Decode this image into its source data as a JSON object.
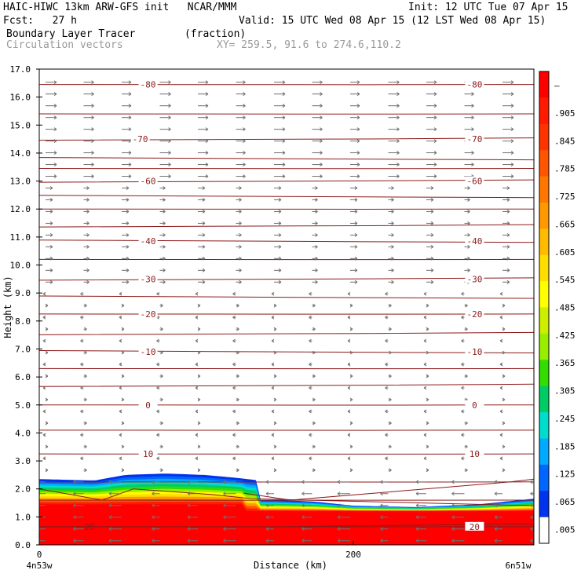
{
  "header": {
    "model_line": "HAIC-HIWC 13km ARW-GFS init   NCAR/MMM",
    "init_line": "Init: 12 UTC Tue 07 Apr 15",
    "fcst_line": "Fcst:   27 h",
    "valid_line": "Valid: 15 UTC Wed 08 Apr 15 (12 LST Wed 08 Apr 15)",
    "field_line": "Boundary Layer Tracer        (fraction)",
    "vector_line": "Circulation vectors",
    "xy_line": "XY= 259.5, 91.6 to 274.6,110.2"
  },
  "chart_data": {
    "type": "heatmap",
    "title": "Boundary Layer Tracer",
    "units": "(fraction)",
    "ylabel": "Height (km)",
    "xlabel": "Distance (km)",
    "ylim": [
      0,
      17
    ],
    "xlim": [
      0,
      315
    ],
    "yticks": [
      "0.0",
      "1.0",
      "2.0",
      "3.0",
      "4.0",
      "5.0",
      "6.0",
      "7.0",
      "8.0",
      "9.0",
      "10.0",
      "11.0",
      "12.0",
      "13.0",
      "14.0",
      "15.0",
      "16.0",
      "17.0"
    ],
    "xticks": [
      {
        "value": 0,
        "label": "0"
      },
      {
        "value": 200,
        "label": "200"
      }
    ],
    "x_endpoints": {
      "left": "4n53w",
      "right": "6n51w"
    },
    "colorbar": {
      "labels": [
        ".005",
        ".065",
        ".125",
        ".185",
        ".245",
        ".305",
        ".365",
        ".425",
        ".485",
        ".545",
        ".605",
        ".665",
        ".725",
        ".785",
        ".845",
        ".905",
        "–"
      ],
      "colors": [
        "#ffffff",
        "#0033ee",
        "#0066ff",
        "#00aaff",
        "#00ddcc",
        "#00cc66",
        "#33dd00",
        "#99ee00",
        "#ccee00",
        "#ffff00",
        "#ffdd00",
        "#ffbb00",
        "#ff9900",
        "#ff7700",
        "#ff5500",
        "#ff3300",
        "#ff1a00",
        "#ff0000"
      ]
    },
    "tracer_top_km": [
      {
        "x": 0,
        "top": 2.35
      },
      {
        "x": 40,
        "top": 2.3
      },
      {
        "x": 50,
        "top": 2.5
      },
      {
        "x": 75,
        "top": 2.55
      },
      {
        "x": 110,
        "top": 2.45
      },
      {
        "x": 140,
        "top": 2.3
      },
      {
        "x": 120,
        "top": 1.6
      },
      {
        "x": 160,
        "top": 1.55
      },
      {
        "x": 200,
        "top": 1.4
      },
      {
        "x": 250,
        "top": 1.35
      },
      {
        "x": 290,
        "top": 1.45
      },
      {
        "x": 315,
        "top": 1.6
      }
    ],
    "isotherms": [
      {
        "label": "-80",
        "y": 16.45
      },
      {
        "label": "-70",
        "y": 14.5
      },
      {
        "label": "-60",
        "y": 13.0
      },
      {
        "label": "-40",
        "y": 10.85
      },
      {
        "label": "-30",
        "y": 9.5
      },
      {
        "label": "-20",
        "y": 8.25
      },
      {
        "label": "-10",
        "y": 6.9
      },
      {
        "label": "0",
        "y": 5.0
      },
      {
        "label": "10",
        "y": 3.25
      },
      {
        "label": "20",
        "y": 0.65
      }
    ],
    "temperature_contour_levels_km": [
      0.65,
      1.6,
      2.25,
      3.25,
      4.1,
      5.0,
      5.7,
      6.3,
      6.9,
      7.55,
      8.25,
      8.85,
      9.5,
      10.2,
      10.85,
      11.4,
      12.0,
      12.45,
      13.0,
      13.45,
      13.8,
      14.5,
      15.4,
      16.45
    ],
    "colors": {
      "contour": "#8b1a1a",
      "vector": "#707070",
      "tracer_max": "#ff0000"
    }
  }
}
